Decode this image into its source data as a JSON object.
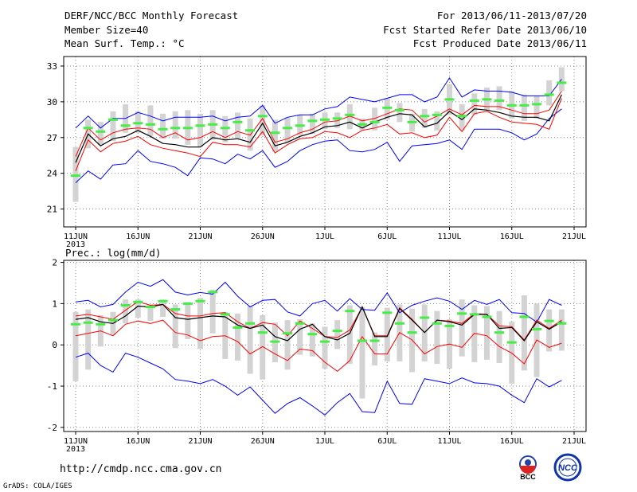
{
  "header": {
    "title": "DERF/NCC/BCC Monthly Forecast",
    "member_size": "Member Size=40",
    "variable": "Mean Surf. Temp.: °C",
    "period": "For 2013/06/11-2013/07/20",
    "refer_date": "Fcst Started Refer Date 2013/06/10",
    "produced_date": "Fcst Produced Date 2013/06/11"
  },
  "footer": {
    "url": "http://cmdp.ncc.cma.gov.cn",
    "credit": "GrADS: COLA/IGES",
    "logo_label": "BCC",
    "logo2_label": "NCC"
  },
  "colors": {
    "envelope": "#0000ff",
    "spread": "#ff0000",
    "median": "#000000",
    "member_box": "#d3d3d3",
    "mean_marker": "#44ee44",
    "grid": "#888888"
  },
  "chart_data": [
    {
      "type": "line",
      "title": "Mean Surf. Temp.: °C",
      "year_label": "2013",
      "x_ticks": [
        "11JUN",
        "16JUN",
        "21JUN",
        "26JUN",
        "1JUL",
        "6JUL",
        "11JUL",
        "16JUL",
        "21JUL"
      ],
      "ylim": [
        19.5,
        33.8
      ],
      "y_ticks": [
        21,
        24,
        27,
        30,
        33
      ],
      "y_tick_labels": [
        "21",
        "24",
        "27",
        "30",
        "33"
      ],
      "series": {
        "upper_env": [
          27.8,
          28.8,
          27.8,
          28.6,
          28.6,
          29.1,
          28.8,
          28.4,
          28.7,
          28.7,
          28.7,
          28.8,
          28.4,
          28.7,
          28.8,
          29.7,
          28.2,
          28.7,
          28.9,
          28.9,
          29.4,
          29.6,
          30.4,
          30.2,
          30.0,
          30.3,
          30.6,
          30.6,
          30.0,
          30.4,
          32.0,
          30.4,
          31.0,
          30.9,
          30.9,
          30.8,
          30.5,
          30.5,
          30.5,
          31.9
        ],
        "upper_red": [
          25.4,
          27.8,
          26.8,
          27.4,
          27.7,
          27.8,
          27.7,
          27.0,
          27.4,
          26.8,
          27.0,
          27.5,
          27.0,
          27.5,
          27.2,
          28.6,
          26.6,
          26.9,
          27.4,
          27.7,
          28.3,
          28.4,
          28.8,
          28.4,
          28.6,
          29.0,
          29.4,
          29.3,
          28.3,
          28.8,
          29.4,
          28.9,
          29.7,
          29.6,
          29.6,
          29.3,
          29.0,
          29.0,
          29.3,
          30.9
        ],
        "median": [
          24.9,
          27.3,
          26.3,
          26.9,
          27.1,
          27.6,
          27.1,
          26.5,
          26.4,
          26.2,
          26.2,
          27.0,
          26.8,
          26.9,
          26.6,
          28.2,
          26.3,
          26.6,
          27.1,
          27.4,
          27.9,
          28.0,
          28.3,
          27.8,
          28.3,
          28.7,
          29.0,
          28.9,
          27.9,
          28.2,
          29.2,
          28.5,
          29.4,
          29.3,
          29.1,
          28.8,
          28.7,
          28.7,
          28.4,
          30.6
        ],
        "lower_red": [
          24.2,
          26.8,
          25.8,
          26.5,
          26.7,
          27.1,
          26.4,
          26.1,
          25.9,
          25.7,
          25.4,
          26.6,
          26.4,
          26.4,
          26.2,
          27.5,
          25.7,
          26.4,
          26.9,
          27.0,
          27.5,
          27.4,
          27.0,
          27.6,
          27.8,
          28.1,
          27.3,
          27.4,
          27.0,
          27.2,
          28.7,
          27.5,
          29.0,
          29.2,
          28.7,
          28.3,
          28.2,
          28.1,
          27.7,
          30.3
        ],
        "lower_env": [
          23.2,
          24.2,
          23.5,
          24.7,
          24.8,
          25.9,
          25.0,
          24.8,
          24.5,
          23.8,
          25.3,
          25.2,
          24.8,
          25.6,
          25.2,
          25.9,
          24.5,
          25.0,
          25.9,
          26.4,
          26.7,
          26.8,
          25.9,
          25.8,
          26.0,
          26.6,
          25.0,
          26.3,
          26.4,
          26.5,
          26.8,
          26.0,
          27.7,
          27.7,
          27.7,
          27.4,
          26.8,
          27.3,
          28.6,
          29.4
        ],
        "mean_marker": [
          23.8,
          27.8,
          27.5,
          28.5,
          28.0,
          28.2,
          28.1,
          27.7,
          27.8,
          27.8,
          28.0,
          28.1,
          27.8,
          28.3,
          27.6,
          28.8,
          27.4,
          27.8,
          28.0,
          28.4,
          28.5,
          28.6,
          28.9,
          28.1,
          28.3,
          29.5,
          29.3,
          28.3,
          28.8,
          28.9,
          30.2,
          28.8,
          30.1,
          30.2,
          30.1,
          29.7,
          29.7,
          29.8,
          30.6,
          31.6
        ],
        "box_high": [
          26.2,
          28.5,
          28.3,
          29.2,
          29.8,
          29.2,
          29.7,
          29.0,
          29.2,
          29.3,
          29.0,
          29.3,
          28.8,
          29.1,
          28.6,
          29.7,
          28.5,
          28.7,
          28.9,
          29.0,
          29.1,
          29.1,
          29.8,
          28.6,
          29.5,
          30.3,
          29.9,
          29.0,
          29.4,
          29.2,
          31.5,
          29.8,
          30.7,
          31.2,
          31.3,
          30.9,
          30.6,
          30.5,
          31.8,
          32.9
        ],
        "box_low": [
          21.6,
          26.1,
          26.4,
          26.7,
          27.4,
          27.4,
          27.1,
          26.9,
          26.9,
          26.4,
          26.2,
          26.8,
          26.6,
          26.9,
          25.9,
          27.2,
          25.8,
          26.6,
          27.2,
          27.3,
          27.7,
          27.8,
          27.7,
          27.6,
          27.6,
          28.5,
          28.3,
          27.5,
          27.8,
          27.6,
          28.9,
          27.6,
          28.9,
          29.3,
          29.3,
          28.6,
          28.4,
          28.6,
          29.7,
          30.9
        ]
      }
    },
    {
      "type": "line",
      "title": "Prec.: log(mm/d)",
      "year_label": "2013",
      "x_ticks": [
        "11JUN",
        "16JUN",
        "21JUN",
        "26JUN",
        "1JUL",
        "6JUL",
        "11JUL",
        "16JUL",
        "21JUL"
      ],
      "ylim": [
        -2.1,
        2.05
      ],
      "y_ticks": [
        -2,
        -1,
        0,
        1,
        2
      ],
      "y_tick_labels": [
        "-2",
        "-1",
        "0",
        "1",
        "2"
      ],
      "series": {
        "upper_env": [
          1.04,
          1.08,
          0.92,
          0.98,
          1.28,
          1.52,
          1.42,
          1.58,
          1.28,
          1.21,
          1.27,
          1.23,
          1.52,
          1.18,
          0.92,
          1.08,
          1.1,
          0.8,
          0.7,
          1.0,
          1.08,
          0.82,
          1.12,
          0.86,
          0.84,
          1.26,
          0.78,
          0.96,
          1.06,
          1.14,
          1.06,
          0.86,
          1.08,
          0.98,
          1.1,
          0.78,
          0.76,
          0.55,
          1.1,
          0.96
        ],
        "upper_red": [
          0.7,
          0.74,
          0.68,
          0.62,
          0.84,
          1.05,
          0.96,
          0.98,
          0.76,
          0.7,
          0.7,
          0.76,
          0.78,
          0.56,
          0.4,
          0.54,
          0.5,
          0.22,
          0.58,
          0.4,
          0.2,
          0.18,
          0.36,
          0.92,
          0.22,
          0.22,
          0.9,
          0.62,
          0.3,
          0.6,
          0.58,
          0.52,
          0.76,
          0.74,
          0.46,
          0.44,
          0.12,
          0.6,
          0.4,
          0.6
        ],
        "median": [
          0.62,
          0.66,
          0.56,
          0.52,
          0.7,
          0.94,
          0.92,
          0.98,
          0.66,
          0.62,
          0.66,
          0.7,
          0.68,
          0.48,
          0.4,
          0.48,
          0.2,
          0.1,
          0.38,
          0.5,
          0.2,
          0.12,
          0.28,
          0.92,
          0.2,
          0.2,
          0.88,
          0.6,
          0.3,
          0.6,
          0.56,
          0.48,
          0.74,
          0.74,
          0.4,
          0.42,
          0.1,
          0.56,
          0.38,
          0.56
        ],
        "lower_red": [
          0.22,
          0.28,
          0.34,
          0.22,
          0.5,
          0.58,
          0.52,
          0.6,
          0.3,
          0.24,
          0.1,
          0.2,
          0.22,
          0.08,
          -0.22,
          -0.04,
          -0.22,
          -0.38,
          -0.1,
          -0.14,
          -0.42,
          -0.64,
          -0.38,
          0.2,
          -0.22,
          -0.22,
          0.3,
          0.12,
          -0.22,
          -0.04,
          0.02,
          -0.06,
          0.28,
          0.22,
          -0.04,
          -0.2,
          -0.46,
          0.12,
          -0.06,
          0.04
        ],
        "lower_env": [
          -0.3,
          -0.2,
          -0.5,
          -0.66,
          -0.2,
          -0.3,
          -0.44,
          -0.58,
          -0.84,
          -0.88,
          -0.94,
          -0.84,
          -1.0,
          -1.22,
          -1.02,
          -1.34,
          -1.66,
          -1.42,
          -1.28,
          -1.48,
          -1.7,
          -1.4,
          -1.18,
          -1.62,
          -1.64,
          -0.88,
          -1.42,
          -1.44,
          -0.82,
          -0.88,
          -0.94,
          -0.8,
          -0.92,
          -0.94,
          -1.0,
          -1.22,
          -1.4,
          -0.82,
          -1.02,
          -0.86
        ],
        "mean_marker": [
          0.5,
          0.54,
          0.5,
          0.6,
          0.96,
          1.04,
          0.92,
          1.06,
          0.86,
          1.0,
          1.06,
          1.28,
          0.74,
          0.42,
          0.52,
          0.3,
          0.08,
          0.28,
          0.52,
          0.26,
          0.08,
          0.34,
          0.82,
          0.1,
          0.1,
          0.78,
          0.52,
          0.3,
          0.66,
          0.52,
          0.46,
          0.76,
          0.74,
          0.68,
          0.3,
          0.06,
          0.68,
          0.38,
          0.58,
          0.52
        ],
        "box_high": [
          0.8,
          0.86,
          0.72,
          0.8,
          1.1,
          1.1,
          0.98,
          1.1,
          0.98,
          1.04,
          1.14,
          1.34,
          0.8,
          0.76,
          0.94,
          0.72,
          0.54,
          0.6,
          0.62,
          0.52,
          0.44,
          0.6,
          0.96,
          0.92,
          0.3,
          0.9,
          0.98,
          0.88,
          0.98,
          0.82,
          0.62,
          1.1,
          0.96,
          0.94,
          0.82,
          0.56,
          1.2,
          1.0,
          0.86,
          0.86
        ],
        "box_low": [
          -0.88,
          -0.6,
          -0.04,
          0.24,
          0.52,
          0.66,
          0.58,
          0.68,
          -0.08,
          0.14,
          -0.1,
          0.28,
          -0.34,
          -0.38,
          -0.7,
          -0.84,
          -0.42,
          -0.6,
          -0.24,
          -0.28,
          -0.58,
          -0.1,
          -0.46,
          -1.3,
          -0.5,
          -0.4,
          -0.4,
          -0.66,
          -0.4,
          -0.46,
          -0.58,
          -0.28,
          -0.42,
          -0.36,
          -0.44,
          -0.94,
          -0.62,
          -0.78,
          -0.16,
          -0.14
        ]
      }
    }
  ]
}
